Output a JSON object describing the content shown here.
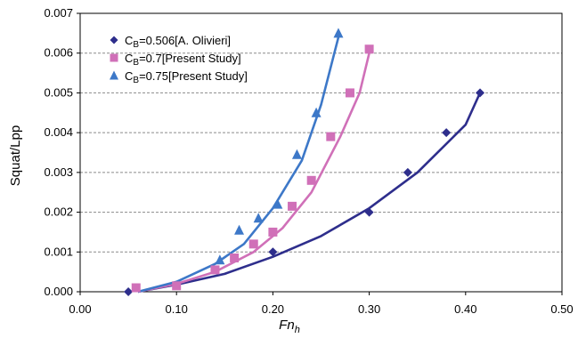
{
  "chart_data": {
    "type": "scatter",
    "xlabel_main": "Fn",
    "xlabel_sub": "h",
    "ylabel": "Squat/Lpp",
    "xlim": [
      0.0,
      0.5
    ],
    "ylim": [
      0.0,
      0.007
    ],
    "x_ticks": [
      "0.00",
      "0.10",
      "0.20",
      "0.30",
      "0.40",
      "0.50"
    ],
    "x_tick_values": [
      0.0,
      0.1,
      0.2,
      0.3,
      0.4,
      0.5
    ],
    "y_ticks": [
      "0.000",
      "0.001",
      "0.002",
      "0.003",
      "0.004",
      "0.005",
      "0.006",
      "0.007"
    ],
    "y_tick_values": [
      0.0,
      0.001,
      0.002,
      0.003,
      0.004,
      0.005,
      0.006,
      0.007
    ],
    "grid": "horizontal dashed",
    "legend_position": "top-left",
    "series": [
      {
        "name_main": "C",
        "name_sub": "B",
        "name_rest": "=0.506[A. Olivieri]",
        "marker": "diamond",
        "color": "#2e2e8c",
        "points": [
          [
            0.05,
            0.0
          ],
          [
            0.2,
            0.001
          ],
          [
            0.3,
            0.002
          ],
          [
            0.34,
            0.003
          ],
          [
            0.38,
            0.004
          ],
          [
            0.415,
            0.005
          ]
        ],
        "curve": [
          [
            0.06,
            0.0
          ],
          [
            0.1,
            0.00018
          ],
          [
            0.15,
            0.00045
          ],
          [
            0.2,
            0.00088
          ],
          [
            0.25,
            0.0014
          ],
          [
            0.3,
            0.0021
          ],
          [
            0.35,
            0.003
          ],
          [
            0.4,
            0.0042
          ],
          [
            0.415,
            0.005
          ]
        ]
      },
      {
        "name_main": "C",
        "name_sub": "B",
        "name_rest": "=0.7[Present Study]",
        "marker": "square",
        "color": "#d070b8",
        "points": [
          [
            0.058,
            0.0001
          ],
          [
            0.1,
            0.00015
          ],
          [
            0.14,
            0.00055
          ],
          [
            0.16,
            0.00085
          ],
          [
            0.18,
            0.0012
          ],
          [
            0.2,
            0.0015
          ],
          [
            0.22,
            0.00215
          ],
          [
            0.24,
            0.0028
          ],
          [
            0.26,
            0.0039
          ],
          [
            0.28,
            0.005
          ],
          [
            0.3,
            0.0061
          ]
        ],
        "curve": [
          [
            0.06,
            0.0
          ],
          [
            0.1,
            0.0002
          ],
          [
            0.14,
            0.0005
          ],
          [
            0.18,
            0.001
          ],
          [
            0.21,
            0.0016
          ],
          [
            0.24,
            0.0025
          ],
          [
            0.27,
            0.0039
          ],
          [
            0.29,
            0.005
          ],
          [
            0.3,
            0.006
          ]
        ]
      },
      {
        "name_main": "C",
        "name_sub": "B",
        "name_rest": "=0.75[Present Study]",
        "marker": "triangle",
        "color": "#3d78c8",
        "points": [
          [
            0.145,
            0.0008
          ],
          [
            0.165,
            0.00155
          ],
          [
            0.185,
            0.00185
          ],
          [
            0.205,
            0.0022
          ],
          [
            0.225,
            0.00345
          ],
          [
            0.245,
            0.0045
          ],
          [
            0.268,
            0.0065
          ]
        ],
        "curve": [
          [
            0.06,
            0.0
          ],
          [
            0.1,
            0.00025
          ],
          [
            0.14,
            0.0007
          ],
          [
            0.17,
            0.0012
          ],
          [
            0.2,
            0.0021
          ],
          [
            0.23,
            0.0033
          ],
          [
            0.25,
            0.0047
          ],
          [
            0.268,
            0.0064
          ]
        ]
      }
    ]
  }
}
